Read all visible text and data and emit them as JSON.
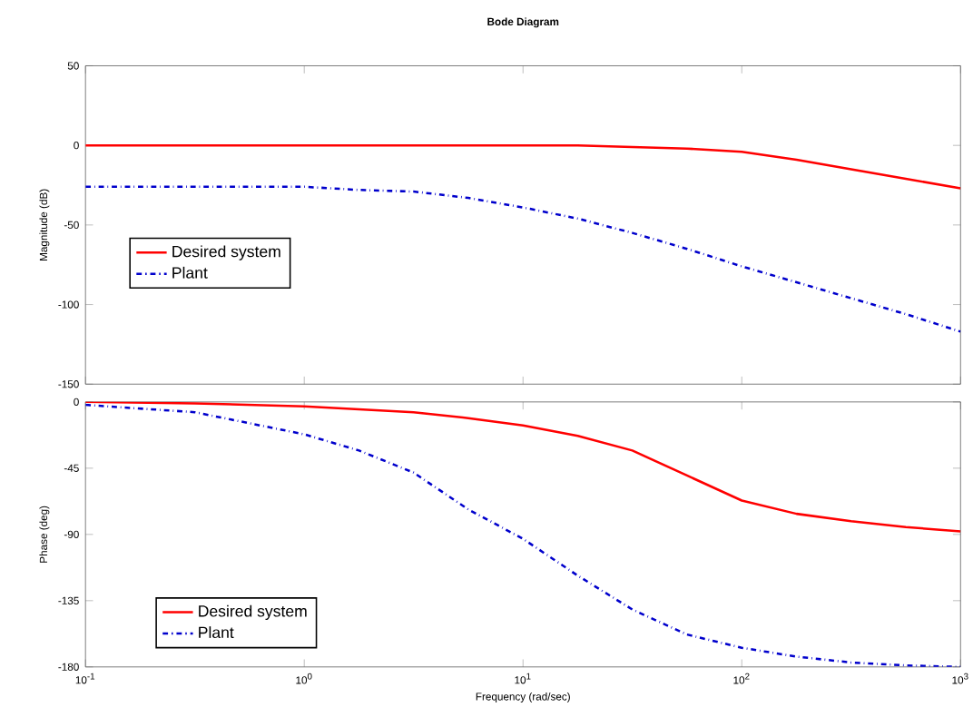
{
  "chart_data": [
    {
      "type": "line",
      "title": "Bode Diagram",
      "ylabel": "Magnitude (dB)",
      "x": [
        0.1,
        0.316,
        1,
        1.78,
        3.16,
        5.62,
        10,
        17.8,
        31.6,
        56.2,
        100,
        178,
        316,
        562,
        1000
      ],
      "series": [
        {
          "name": "Desired system",
          "color": "#ff0000",
          "line_style": "solid",
          "values": [
            0,
            0,
            0,
            0,
            0,
            0,
            0,
            0,
            -1,
            -2,
            -4,
            -9,
            -15,
            -21,
            -27
          ]
        },
        {
          "name": "Plant",
          "color": "#0000cc",
          "line_style": "dashdot",
          "values": [
            -26,
            -26,
            -26,
            -28,
            -29,
            -33,
            -39,
            -46,
            -55,
            -65,
            -76,
            -86,
            -96,
            -106,
            -117
          ]
        }
      ],
      "log": "x",
      "xlim": [
        0.1,
        1000
      ],
      "xticks": [
        {
          "value": 0.1,
          "label": null
        },
        {
          "value": 1,
          "label": null
        },
        {
          "value": 10,
          "label": null
        },
        {
          "value": 100,
          "label": null
        },
        {
          "value": 1000,
          "label": null
        }
      ],
      "ylim": [
        -150,
        50
      ],
      "yticks": [
        -150,
        -100,
        -50,
        0,
        50
      ],
      "tick_labels": "y",
      "legend": "left",
      "marker": "none",
      "grid": false
    },
    {
      "type": "line",
      "xlabel": "Frequency (rad/sec)",
      "ylabel": "Phase (deg)",
      "x": [
        0.1,
        0.316,
        1,
        1.78,
        3.16,
        5.62,
        10,
        17.8,
        31.6,
        56.2,
        100,
        178,
        316,
        562,
        1000
      ],
      "series": [
        {
          "name": "Desired system",
          "color": "#ff0000",
          "line_style": "solid",
          "values": [
            0,
            -1,
            -3,
            -5,
            -7,
            -11,
            -16,
            -23,
            -33,
            -50,
            -67,
            -76,
            -81,
            -85,
            -88
          ]
        },
        {
          "name": "Plant",
          "color": "#0000cc",
          "line_style": "dashdot",
          "values": [
            -2,
            -7,
            -22,
            -33,
            -48,
            -73,
            -93,
            -118,
            -141,
            -158,
            -167,
            -173,
            -177,
            -179,
            -180
          ]
        }
      ],
      "log": "x",
      "xlim": [
        0.1,
        1000
      ],
      "xticks": [
        {
          "value": 0.1,
          "label": "10$^{-1}$"
        },
        {
          "value": 1,
          "label": "10$^{0}$"
        },
        {
          "value": 10,
          "label": "10$^{1}$"
        },
        {
          "value": 100,
          "label": "10$^{2}$"
        },
        {
          "value": 1000,
          "label": "10$^{3}$"
        }
      ],
      "ylim": [
        -180,
        0
      ],
      "yticks": [
        -180,
        -135,
        -90,
        -45,
        0
      ],
      "legend": "bottom left",
      "marker": "none",
      "grid": false
    }
  ]
}
